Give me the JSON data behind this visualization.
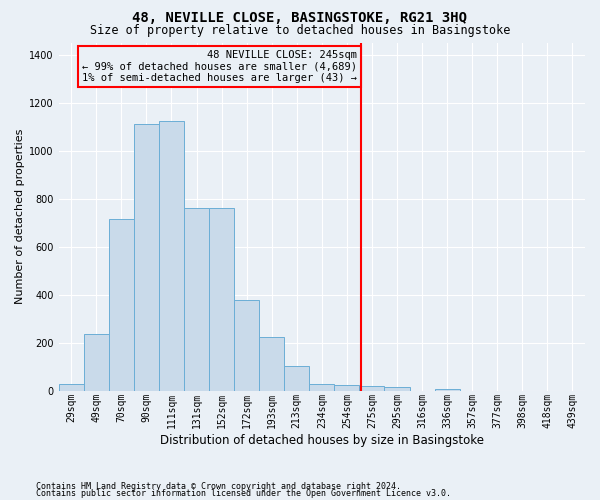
{
  "title": "48, NEVILLE CLOSE, BASINGSTOKE, RG21 3HQ",
  "subtitle": "Size of property relative to detached houses in Basingstoke",
  "xlabel": "Distribution of detached houses by size in Basingstoke",
  "ylabel": "Number of detached properties",
  "bar_labels": [
    "29sqm",
    "49sqm",
    "70sqm",
    "90sqm",
    "111sqm",
    "131sqm",
    "152sqm",
    "172sqm",
    "193sqm",
    "213sqm",
    "234sqm",
    "254sqm",
    "275sqm",
    "295sqm",
    "316sqm",
    "336sqm",
    "357sqm",
    "377sqm",
    "398sqm",
    "418sqm",
    "439sqm"
  ],
  "bar_values": [
    30,
    235,
    715,
    1110,
    1125,
    760,
    760,
    380,
    225,
    105,
    30,
    25,
    20,
    15,
    0,
    10,
    0,
    0,
    0,
    0,
    0
  ],
  "bar_color": "#c9daea",
  "bar_edge_color": "#6baed6",
  "annotation_title": "48 NEVILLE CLOSE: 245sqm",
  "annotation_line1": "← 99% of detached houses are smaller (4,689)",
  "annotation_line2": "1% of semi-detached houses are larger (43) →",
  "ylim": [
    0,
    1450
  ],
  "yticks": [
    0,
    200,
    400,
    600,
    800,
    1000,
    1200,
    1400
  ],
  "footer1": "Contains HM Land Registry data © Crown copyright and database right 2024.",
  "footer2": "Contains public sector information licensed under the Open Government Licence v3.0.",
  "bg_color": "#eaf0f6",
  "grid_color": "#ffffff",
  "title_fontsize": 10,
  "subtitle_fontsize": 8.5,
  "tick_fontsize": 7,
  "ylabel_fontsize": 8,
  "xlabel_fontsize": 8.5,
  "annotation_fontsize": 7.5,
  "footer_fontsize": 6
}
